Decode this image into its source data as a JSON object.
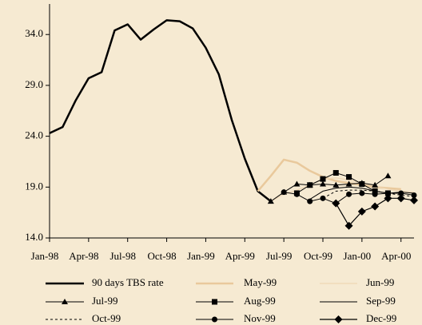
{
  "chart_data": {
    "type": "line",
    "categories": [
      "Jan-98",
      null,
      null,
      "Apr-98",
      null,
      null,
      "Jul-98",
      null,
      null,
      "Oct-98",
      null,
      null,
      "Jan-99",
      null,
      null,
      "Apr-99",
      null,
      null,
      "Jul-99",
      null,
      null,
      "Oct-99",
      null,
      null,
      "Jan-00",
      null,
      null,
      "Apr-00",
      null
    ],
    "ylim": [
      14,
      37
    ],
    "yticks": [
      {
        "value": 14,
        "label": "14.0"
      },
      {
        "value": 19,
        "label": "19.0"
      },
      {
        "value": 24,
        "label": "24.0"
      },
      {
        "value": 29,
        "label": "29.0"
      },
      {
        "value": 34,
        "label": "34.0"
      }
    ],
    "series": [
      {
        "name": "90 days TBS rate",
        "color": "#000000",
        "width": 2.5,
        "dash": "none",
        "marker": "none",
        "values": [
          24.3,
          24.9,
          27.5,
          29.7,
          30.3,
          34.4,
          35.0,
          33.5,
          34.5,
          35.4,
          35.3,
          34.6,
          32.7,
          30.1,
          25.6,
          21.8,
          18.6,
          17.6,
          null,
          null,
          null,
          null,
          null,
          null,
          null,
          null,
          null,
          null,
          null
        ]
      },
      {
        "name": "May-99",
        "color": "#e9c99c",
        "width": 2.5,
        "dash": "none",
        "marker": "none",
        "values": [
          null,
          null,
          null,
          null,
          null,
          null,
          null,
          null,
          null,
          null,
          null,
          null,
          null,
          null,
          null,
          null,
          18.6,
          20.1,
          21.7,
          21.4,
          20.6,
          20.0,
          19.6,
          19.4,
          19.2,
          19.0,
          18.9,
          18.8,
          null
        ]
      },
      {
        "name": "Jun-99",
        "color": "#eed6b4",
        "width": 1.2,
        "dash": "none",
        "marker": "none",
        "values": [
          null,
          null,
          null,
          null,
          null,
          null,
          null,
          null,
          null,
          null,
          null,
          null,
          null,
          null,
          null,
          null,
          null,
          17.6,
          18.3,
          18.7,
          19.2,
          19.8,
          19.9,
          19.7,
          19.4,
          19.1,
          18.8,
          18.6,
          18.5
        ]
      },
      {
        "name": "Jul-99",
        "color": "#000000",
        "width": 1,
        "dash": "none",
        "marker": "triangle",
        "values": [
          null,
          null,
          null,
          null,
          null,
          null,
          null,
          null,
          null,
          null,
          null,
          null,
          null,
          null,
          null,
          null,
          null,
          17.6,
          18.5,
          19.3,
          19.2,
          19.3,
          19.2,
          19.3,
          19.4,
          19.2,
          20.1,
          null,
          null
        ]
      },
      {
        "name": "Aug-99",
        "color": "#000000",
        "width": 1,
        "dash": "none",
        "marker": "square",
        "values": [
          null,
          null,
          null,
          null,
          null,
          null,
          null,
          null,
          null,
          null,
          null,
          null,
          null,
          null,
          null,
          null,
          null,
          null,
          null,
          18.4,
          19.2,
          19.8,
          20.4,
          20.0,
          19.3,
          18.6,
          18.4,
          null,
          null
        ]
      },
      {
        "name": "Sep-99",
        "color": "#000000",
        "width": 1,
        "dash": "none",
        "marker": "none",
        "values": [
          null,
          null,
          null,
          null,
          null,
          null,
          null,
          null,
          null,
          null,
          null,
          null,
          null,
          null,
          null,
          null,
          null,
          null,
          null,
          null,
          17.8,
          18.6,
          18.9,
          19.0,
          18.9,
          18.6,
          18.4,
          18.5,
          18.4
        ]
      },
      {
        "name": "Oct-99",
        "color": "#000000",
        "width": 1,
        "dash": "3,3",
        "marker": "none",
        "values": [
          null,
          null,
          null,
          null,
          null,
          null,
          null,
          null,
          null,
          null,
          null,
          null,
          null,
          null,
          null,
          null,
          null,
          null,
          null,
          null,
          null,
          17.9,
          18.6,
          18.7,
          18.7,
          18.6,
          18.4,
          18.2,
          18.1
        ]
      },
      {
        "name": "Nov-99",
        "color": "#000000",
        "width": 1,
        "dash": "none",
        "marker": "circle",
        "values": [
          null,
          null,
          null,
          null,
          null,
          null,
          null,
          null,
          null,
          null,
          null,
          null,
          null,
          null,
          null,
          null,
          null,
          null,
          18.5,
          18.3,
          17.6,
          17.9,
          17.4,
          18.3,
          18.4,
          18.3,
          18.4,
          18.4,
          18.2
        ]
      },
      {
        "name": "Dec-99",
        "color": "#000000",
        "width": 1.2,
        "dash": "none",
        "marker": "diamond",
        "values": [
          null,
          null,
          null,
          null,
          null,
          null,
          null,
          null,
          null,
          null,
          null,
          null,
          null,
          null,
          null,
          null,
          null,
          null,
          null,
          null,
          null,
          null,
          17.4,
          15.2,
          16.6,
          17.1,
          17.9,
          17.9,
          17.7
        ]
      }
    ]
  }
}
